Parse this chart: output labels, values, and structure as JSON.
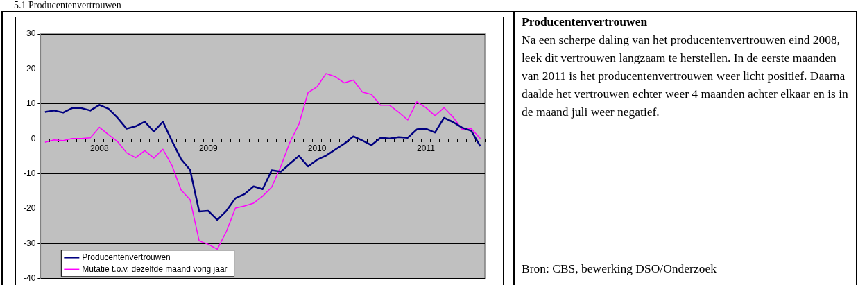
{
  "chart_data": {
    "type": "line",
    "title": "5.1 Producentenvertrouwen",
    "categories": [
      null,
      null,
      null,
      null,
      null,
      null,
      "2008",
      null,
      null,
      null,
      null,
      null,
      null,
      null,
      null,
      null,
      null,
      null,
      "2009",
      null,
      null,
      null,
      null,
      null,
      null,
      null,
      null,
      null,
      null,
      null,
      "2010",
      null,
      null,
      null,
      null,
      null,
      null,
      null,
      null,
      null,
      null,
      null,
      "2011",
      null,
      null,
      null,
      null,
      null,
      null
    ],
    "series": [
      {
        "name": "Producentenvertrouwen",
        "color": "#000080",
        "values": [
          7.7,
          8.1,
          7.5,
          8.8,
          8.8,
          8.1,
          9.7,
          8.6,
          6.0,
          2.9,
          3.6,
          4.9,
          2.1,
          4.9,
          -0.6,
          -5.8,
          -8.9,
          -20.8,
          -20.6,
          -23.2,
          -20.6,
          -17.0,
          -15.8,
          -13.6,
          -14.4,
          -9.0,
          -9.4,
          -7.1,
          -4.9,
          -7.9,
          -6.0,
          -4.8,
          -3.1,
          -1.4,
          0.7,
          -0.5,
          -1.8,
          0.3,
          0.1,
          0.5,
          0.3,
          2.7,
          2.9,
          1.8,
          6.0,
          4.8,
          3.2,
          2.3,
          -2.1
        ]
      },
      {
        "name": "Mutatie t.o.v. dezelfde maand vorig jaar",
        "color": "#ff00ff",
        "values": [
          -1.0,
          -0.3,
          -0.5,
          0.1,
          0.1,
          0.3,
          3.3,
          1.2,
          -0.8,
          -4.0,
          -5.4,
          -3.4,
          -5.5,
          -3.0,
          -7.6,
          -14.6,
          -17.4,
          -29.2,
          -30.2,
          -31.6,
          -26.5,
          -19.8,
          -19.2,
          -18.4,
          -16.4,
          -13.8,
          -7.9,
          -1.0,
          4.2,
          13.2,
          14.9,
          18.7,
          17.8,
          16.0,
          16.8,
          13.4,
          12.7,
          9.6,
          9.6,
          7.6,
          5.4,
          10.6,
          8.9,
          6.6,
          8.9,
          6.2,
          2.7,
          2.9,
          0.1
        ]
      }
    ],
    "ylim": [
      -40,
      30
    ],
    "yticks": [
      -40,
      -30,
      -20,
      -10,
      0,
      10,
      20,
      30
    ],
    "grid": "y",
    "legend": "bottom left",
    "marker": "none",
    "line_style": "solid",
    "annotations": [
      "Producentenvertrouwen",
      "Na een scherpe daling van het producentenvertrouwen eind 2008, leek dit vertrouwen langzaam te herstellen. In de eerste maanden van 2011 is het producentenvertrouwen weer licht positief. Daarna daalde het vertrouwen echter weer 4 maanden achter elkaar en is in de maand juli weer negatief.",
      "Bron: CBS, bewerking DSO/Onderzoek"
    ]
  }
}
